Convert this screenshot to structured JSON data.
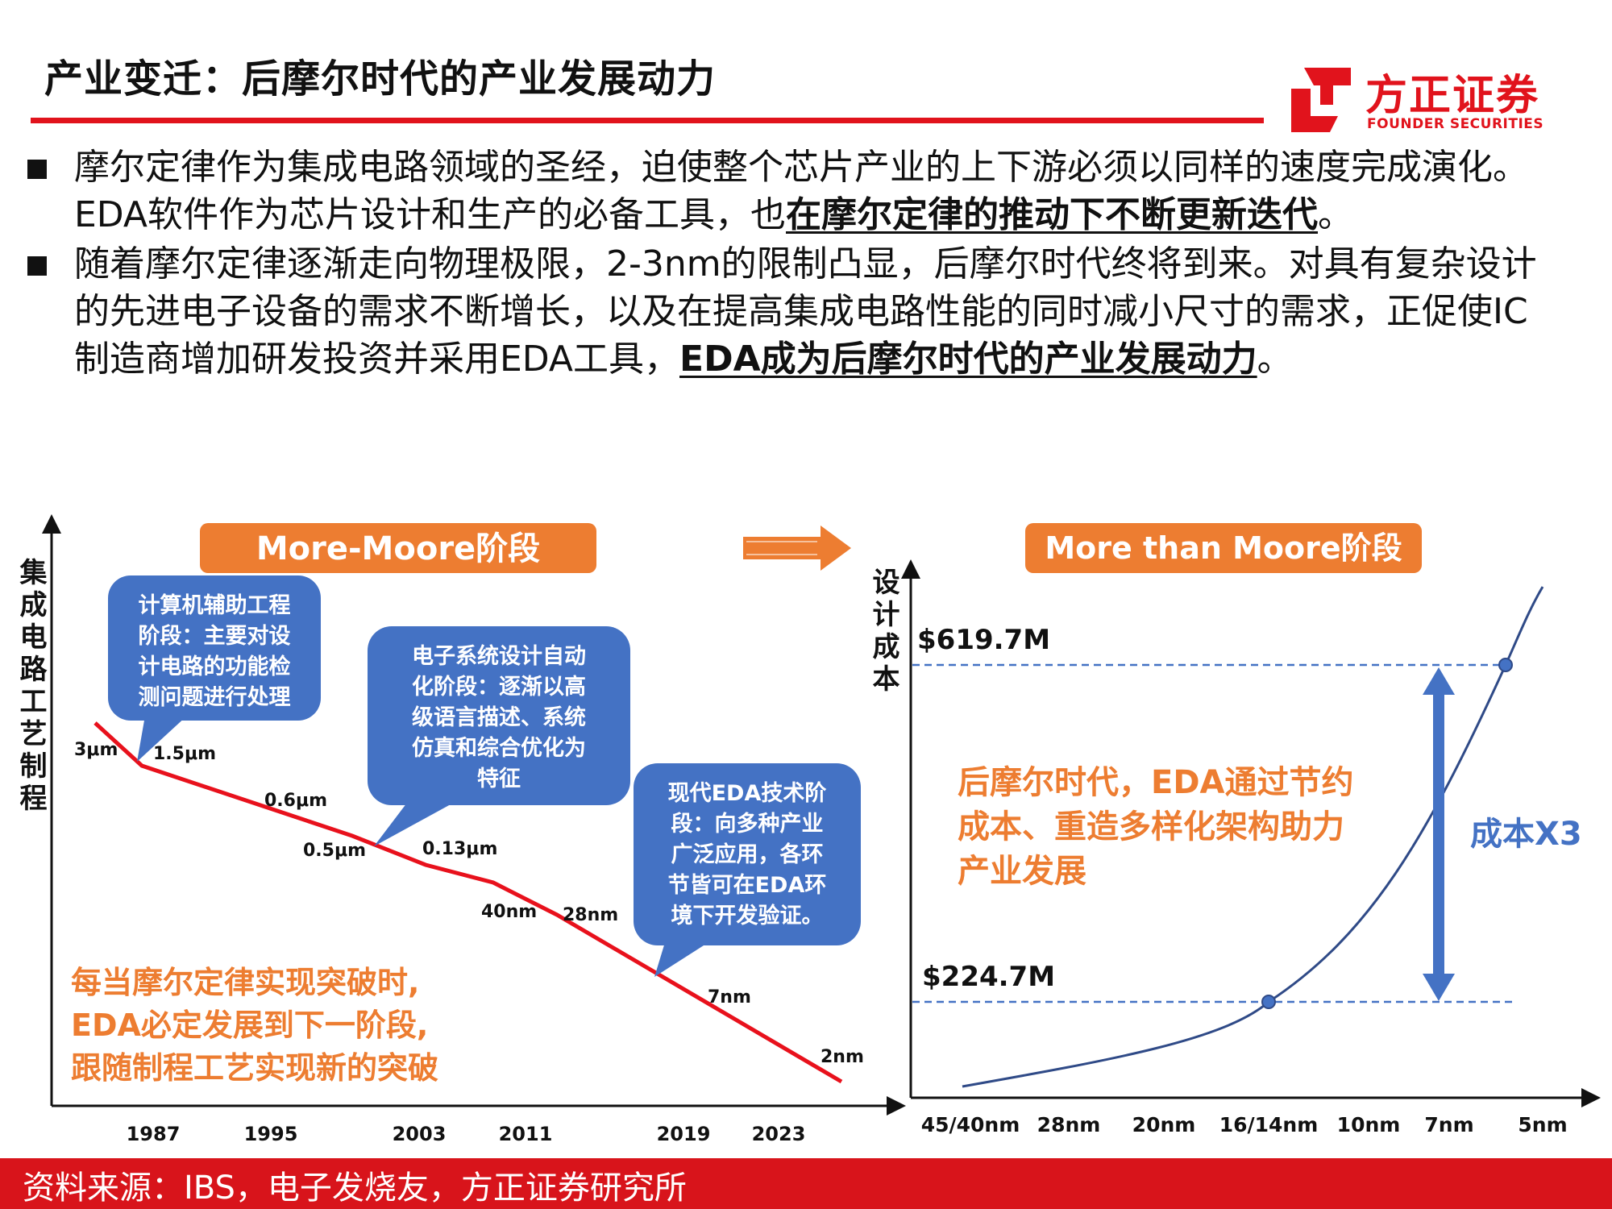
{
  "header": {
    "title": "产业变迁：后摩尔时代的产业发展动力"
  },
  "logo": {
    "name_cn": "方正证券",
    "name_en": "FOUNDER SECURITIES",
    "color": "#e1131c"
  },
  "bullets": [
    {
      "plain": "摩尔定律作为集成电路领域的圣经，迫使整个芯片产业的上下游必须以同样的速度完成演化。EDA软件作为芯片设计和生产的必备工具，也",
      "emphasis": "在摩尔定律的推动下不断更新迭代",
      "tail": "。"
    },
    {
      "plain": "随着摩尔定律逐渐走向物理极限，2-3nm的限制凸显，后摩尔时代终将到来。对具有复杂设计的先进电子设备的需求不断增长，以及在提高集成电路性能的同时减小尺寸的需求，正促使IC制造商增加研发投资并采用EDA工具，",
      "emphasis": "EDA成为后摩尔时代的产业发展动力",
      "tail": "。"
    }
  ],
  "left_panel": {
    "stage_label": "More-Moore阶段",
    "y_axis_label": "集成电路工艺制程",
    "x_ticks": [
      "1987",
      "1995",
      "2003",
      "2011",
      "2019",
      "2023"
    ],
    "nodes": [
      "3μm",
      "1.5μm",
      "0.6μm",
      "0.5μm",
      "0.13μm",
      "40nm",
      "28nm",
      "7nm",
      "2nm"
    ],
    "callouts": [
      [
        "计算机辅助工程",
        "阶段：主要对设",
        "计电路的功能检",
        "测问题进行处理"
      ],
      [
        "电子系统设计自动",
        "化阶段：逐渐以高",
        "级语言描述、系统",
        "仿真和综合优化为",
        "特征"
      ],
      [
        "现代EDA技术阶",
        "段：向多种产业",
        "广泛应用，各环",
        "节皆可在EDA环",
        "境下开发验证。"
      ]
    ],
    "note": [
      "每当摩尔定律实现突破时,",
      "EDA必定发展到下一阶段,",
      "跟随制程工艺实现新的突破"
    ]
  },
  "right_panel": {
    "stage_label": "More than Moore阶段",
    "y_axis_label": "设计成本",
    "x_ticks": [
      "45/40nm",
      "28nm",
      "20nm",
      "16/14nm",
      "10nm",
      "7nm",
      "5nm"
    ],
    "value_high": "$619.7M",
    "value_low": "$224.7M",
    "multiplier": "成本X3",
    "note": [
      "后摩尔时代，EDA通过节约",
      "成本、重造多样化架构助力",
      "产业发展"
    ]
  },
  "colors": {
    "orange": "#ed7d31",
    "blue": "#4472c4",
    "red_line": "#e8111c",
    "curve": "#2f4a87"
  },
  "footer": {
    "source": "资料来源：IBS，电子发烧友，方正证券研究所"
  }
}
